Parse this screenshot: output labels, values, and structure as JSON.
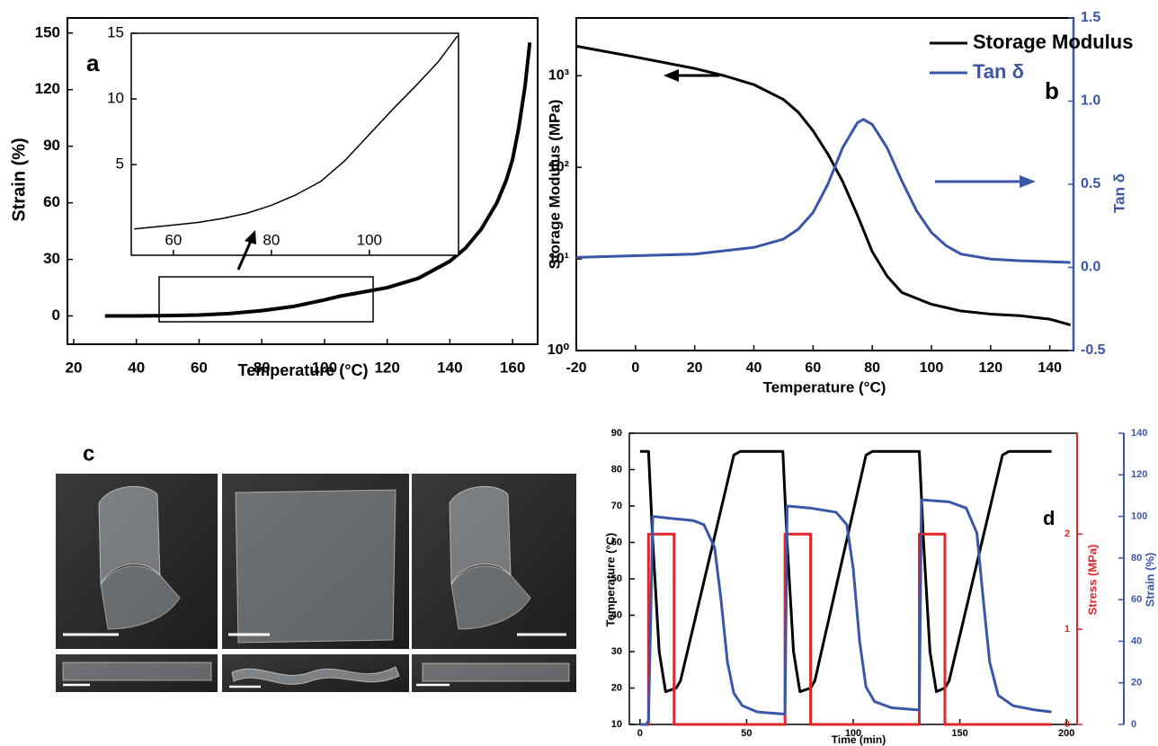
{
  "chart_data": [
    {
      "type": "line",
      "label": "a",
      "xlabel": "Temperature (°C)",
      "ylabel": "Strain (%)",
      "xlim": [
        18,
        168
      ],
      "xticks": [
        20,
        40,
        60,
        80,
        100,
        120,
        140,
        160
      ],
      "ylim": [
        -15,
        158
      ],
      "yticks": [
        0,
        30,
        60,
        90,
        120,
        150
      ],
      "series": [
        {
          "color": "#000000",
          "x": [
            30,
            40,
            50,
            60,
            70,
            80,
            90,
            100,
            105,
            110,
            120,
            130,
            140,
            145,
            150,
            155,
            158,
            160,
            162,
            164,
            165.5
          ],
          "values": [
            0,
            0,
            0.2,
            0.5,
            1.3,
            2.8,
            5,
            8.5,
            10.5,
            12,
            15,
            20,
            29,
            36,
            46,
            60,
            72,
            83,
            100,
            122,
            145
          ]
        }
      ],
      "inset": {
        "type": "line",
        "xlim": [
          51.4,
          118.2
        ],
        "xticks": [
          60,
          80,
          100
        ],
        "ylim": [
          -1.9,
          15
        ],
        "yticks": [
          5,
          10,
          15
        ],
        "series": [
          {
            "color": "#000000",
            "x": [
              52,
              60,
              65,
              70,
              75,
              80,
              85,
              90,
              95,
              100,
              105,
              110,
              114,
              118
            ],
            "values": [
              0.1,
              0.4,
              0.6,
              0.9,
              1.3,
              1.9,
              2.7,
              3.7,
              5.3,
              7.3,
              9.3,
              11.2,
              12.8,
              14.8
            ]
          }
        ]
      }
    },
    {
      "type": "line",
      "label": "b",
      "xlabel": "Temperature (°C)",
      "ylabel": "Storage Modulus (MPa)",
      "y2label": "Tan δ",
      "xlim": [
        -20,
        148
      ],
      "xticks": [
        -20,
        0,
        20,
        40,
        60,
        80,
        100,
        120,
        140
      ],
      "ylim": [
        1,
        4270
      ],
      "ylog": true,
      "yticks": [
        {
          "value": 1,
          "label": "10⁰"
        },
        {
          "value": 10,
          "label": "10¹"
        },
        {
          "value": 100,
          "label": "10²"
        },
        {
          "value": 1000,
          "label": "10³"
        }
      ],
      "y2lim": [
        -0.5,
        1.5
      ],
      "y2ticks": [
        -0.5,
        {
          "value": 0,
          "label": "0.0"
        },
        0.5,
        {
          "value": 1,
          "label": "1.0"
        },
        1.5
      ],
      "legend": "upper right",
      "series": [
        {
          "name": "Storage Modulus",
          "color": "#000000",
          "x": [
            -20,
            0,
            20,
            30,
            40,
            50,
            55,
            60,
            65,
            70,
            75,
            80,
            85,
            90,
            100,
            110,
            120,
            130,
            140,
            147
          ],
          "values": [
            2100,
            1600,
            1200,
            1000,
            800,
            550,
            400,
            250,
            140,
            70,
            30,
            12,
            6.5,
            4.3,
            3.2,
            2.7,
            2.5,
            2.4,
            2.2,
            1.9
          ]
        },
        {
          "name": "Tan δ",
          "color": "#3a56a8",
          "axis": "y2",
          "x": [
            -20,
            0,
            20,
            40,
            50,
            55,
            60,
            65,
            70,
            75,
            77,
            80,
            85,
            90,
            95,
            100,
            105,
            110,
            120,
            130,
            147
          ],
          "values": [
            0.06,
            0.07,
            0.08,
            0.12,
            0.17,
            0.23,
            0.33,
            0.5,
            0.72,
            0.87,
            0.89,
            0.86,
            0.72,
            0.52,
            0.34,
            0.21,
            0.13,
            0.08,
            0.05,
            0.04,
            0.03
          ]
        }
      ]
    },
    {
      "type": "line",
      "label": "d",
      "xlabel": "Time (min)",
      "ylabel": "Temperature (°C)",
      "y2label": "Stress (MPa)",
      "y3label": "Strain (%)",
      "xlim": [
        -5,
        205
      ],
      "xticks": [
        0,
        50,
        100,
        150,
        200
      ],
      "ylim": [
        10,
        90
      ],
      "yticks": [
        10,
        20,
        30,
        40,
        50,
        60,
        70,
        80,
        90
      ],
      "y2lim": [
        0,
        3.06
      ],
      "y2ticks": [
        0,
        1,
        2
      ],
      "y3lim": [
        0,
        140
      ],
      "y3ticks": [
        0,
        20,
        40,
        60,
        80,
        100,
        120,
        140
      ],
      "series": [
        {
          "color": "#000000",
          "x": [
            0,
            4,
            6,
            9,
            12,
            17,
            19,
            44,
            47,
            67,
            69,
            72,
            75,
            80,
            82,
            106,
            109,
            131,
            133,
            136,
            139,
            143,
            145,
            170,
            173,
            193
          ],
          "values": [
            85,
            85,
            60,
            30,
            19,
            20,
            22,
            84,
            85,
            85,
            60,
            30,
            19,
            20,
            22,
            84,
            85,
            85,
            60,
            30,
            19,
            20,
            22,
            84,
            85,
            85
          ]
        },
        {
          "color": "#e3262a",
          "axis": "y2",
          "x": [
            0,
            4,
            4,
            16,
            16,
            68,
            68,
            80,
            80,
            131,
            131,
            143,
            143,
            193
          ],
          "values": [
            0,
            0,
            2,
            2,
            0,
            0,
            2,
            2,
            0,
            0,
            2,
            2,
            0,
            0
          ]
        },
        {
          "color": "#3a56a8",
          "axis": "y3",
          "x": [
            0,
            3,
            4,
            6,
            15,
            25,
            30,
            35,
            38,
            41,
            44,
            48,
            55,
            67,
            68,
            69,
            80,
            92,
            97,
            100,
            103,
            106,
            110,
            118,
            130,
            131,
            132,
            145,
            153,
            158,
            161,
            164,
            168,
            175,
            185,
            193
          ],
          "values": [
            0,
            0,
            2,
            100,
            99,
            98,
            96,
            85,
            60,
            30,
            15,
            9,
            6,
            5,
            5,
            105,
            104,
            102,
            96,
            75,
            40,
            18,
            11,
            8,
            7,
            7,
            108,
            107,
            104,
            92,
            60,
            30,
            14,
            9,
            7,
            6
          ]
        }
      ]
    }
  ],
  "photo_panel": {
    "label": "c"
  }
}
